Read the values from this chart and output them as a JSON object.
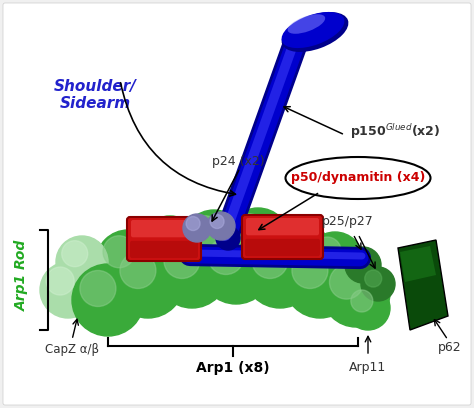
{
  "bg_color": "#f0f0f0",
  "inner_bg_color": "#f8f8f8",
  "shoulder_sidearm_label": "Shoulder/\nSidearm",
  "shoulder_sidearm_color": "#2222cc",
  "p150_text": "p150",
  "p150_super": "Glued",
  "p150_suffix": "(x2)",
  "p24_label": "p24 (x2)",
  "p50_label": "p50/dynamitin (x4)",
  "p50_color": "#cc0000",
  "p25_label": "p25/p27",
  "arp1rod_label": "Arp1 Rod",
  "arp1rod_color": "#22aa22",
  "arp1_label": "Arp1 (x8)",
  "capz_label": "CapZ α/β",
  "arp11_label": "Arp11",
  "p62_label": "p62",
  "blue_dark": "#00008b",
  "blue_mid": "#0000cd",
  "blue_light": "#4444ff",
  "blue_bright": "#6666ff",
  "red_dark": "#8b0000",
  "red_mid": "#cc1111",
  "red_light": "#ee4444",
  "green_arp1_dark": "#2d8b2d",
  "green_arp1_mid": "#3aaa3a",
  "green_arp1_light": "#88cc88",
  "green_capz": "#aaddaa",
  "green_capz_light": "#cceecc",
  "green_dark_p62": "#0a4a0a",
  "green_mid_p62": "#1a7a1a",
  "blue_sphere": "#8888bb",
  "blue_sphere_light": "#aaaadd",
  "label_color": "#333333"
}
